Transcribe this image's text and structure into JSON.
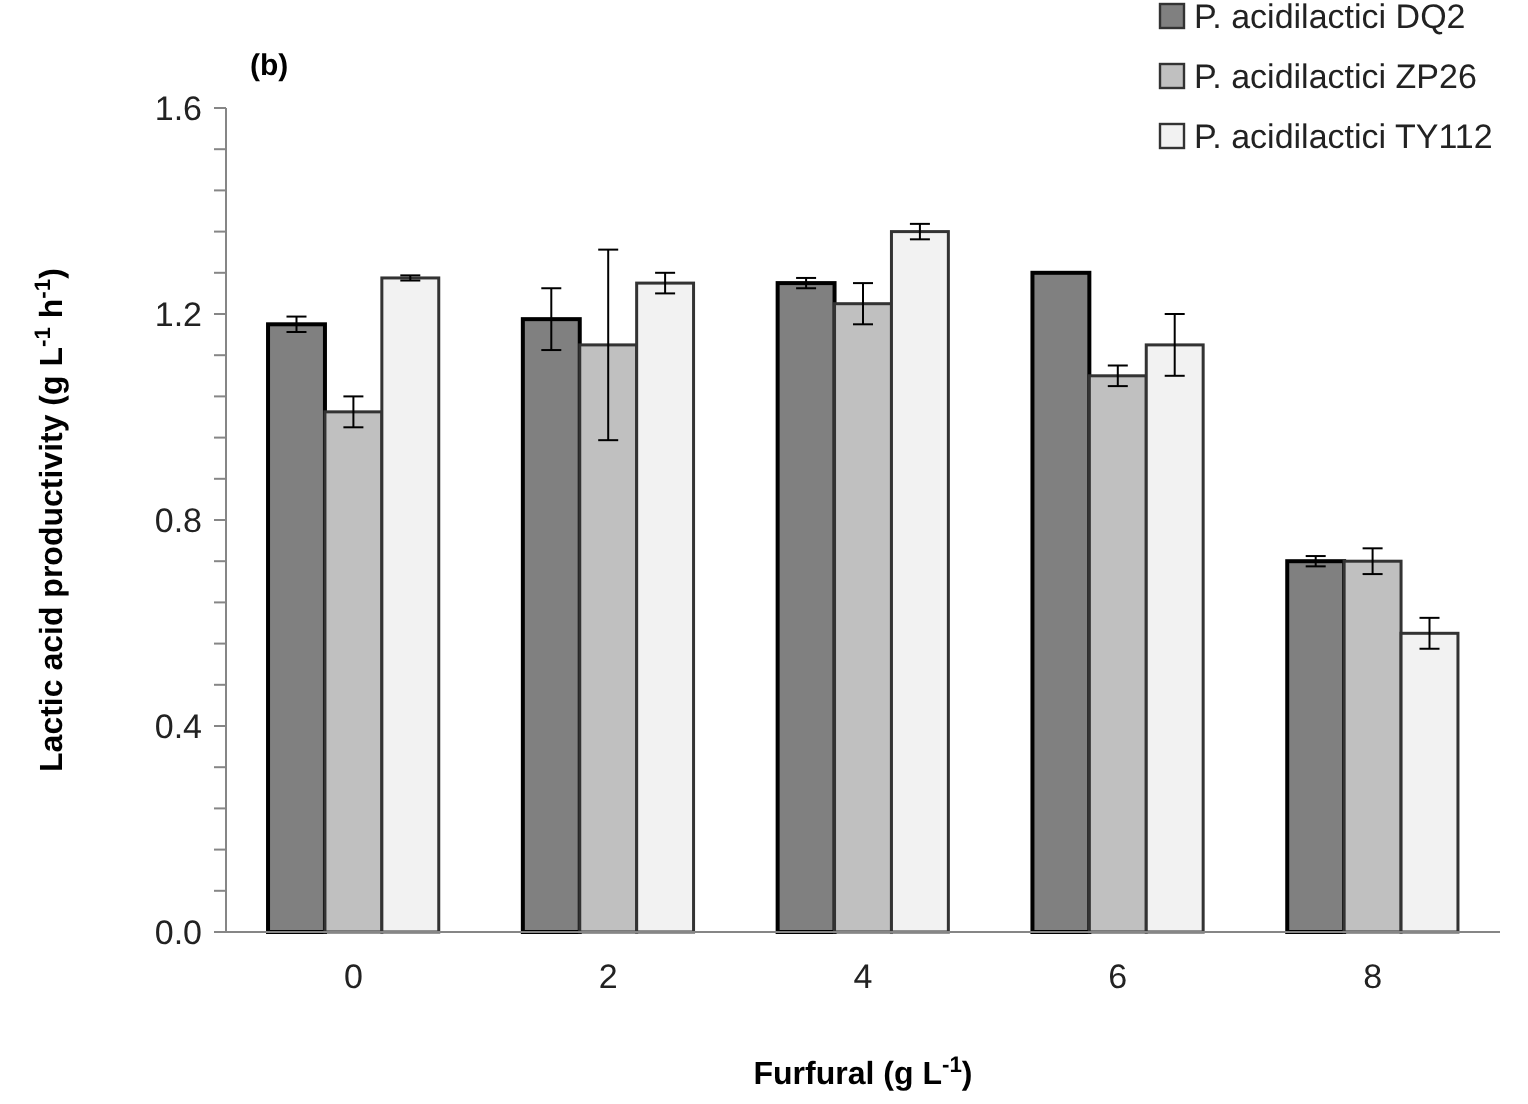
{
  "chart_data": {
    "type": "bar",
    "title": "(b)",
    "xlabel": "Furfural (g L$^{-1}$)",
    "ylabel": "Lactic acid productivity (g L$^{-1}$ h$^{-1}$)",
    "categories": [
      "0",
      "2",
      "4",
      "6",
      "8"
    ],
    "series": [
      {
        "name": "P. acidilactici DQ2",
        "color": "#808080",
        "values": [
          1.18,
          1.19,
          1.26,
          1.28,
          0.72
        ],
        "errors": [
          0.015,
          0.06,
          0.01,
          null,
          0.01
        ]
      },
      {
        "name": "P. acidilactici ZP26",
        "color": "#c0c0c0",
        "values": [
          1.01,
          1.14,
          1.22,
          1.08,
          0.72
        ],
        "errors": [
          0.03,
          0.185,
          0.04,
          0.02,
          0.025
        ]
      },
      {
        "name": "P. acidilactici TY112",
        "color": "#f2f2f2",
        "values": [
          1.27,
          1.26,
          1.36,
          1.14,
          0.58
        ],
        "errors": [
          0.005,
          0.02,
          0.015,
          0.06,
          0.03
        ]
      }
    ],
    "ylim": [
      0,
      1.6
    ],
    "yticks": [
      {
        "value": 0,
        "label": "0.0"
      },
      {
        "value": 0.08,
        "label": null
      },
      {
        "value": 0.16,
        "label": null
      },
      {
        "value": 0.24,
        "label": null
      },
      {
        "value": 0.32,
        "label": null
      },
      {
        "value": 0.4,
        "label": "0.4"
      },
      {
        "value": 0.48,
        "label": null
      },
      {
        "value": 0.56,
        "label": null
      },
      {
        "value": 0.64,
        "label": null
      },
      {
        "value": 0.72,
        "label": null
      },
      {
        "value": 0.8,
        "label": "0.8"
      },
      {
        "value": 0.88,
        "label": null
      },
      {
        "value": 0.96,
        "label": null
      },
      {
        "value": 1.04,
        "label": null
      },
      {
        "value": 1.12,
        "label": null
      },
      {
        "value": 1.2,
        "label": "1.2"
      },
      {
        "value": 1.28,
        "label": null
      },
      {
        "value": 1.36,
        "label": null
      },
      {
        "value": 1.44,
        "label": null
      },
      {
        "value": 1.52,
        "label": null
      },
      {
        "value": 1.6,
        "label": "1.6"
      }
    ],
    "grid": false,
    "legend": "top right"
  }
}
